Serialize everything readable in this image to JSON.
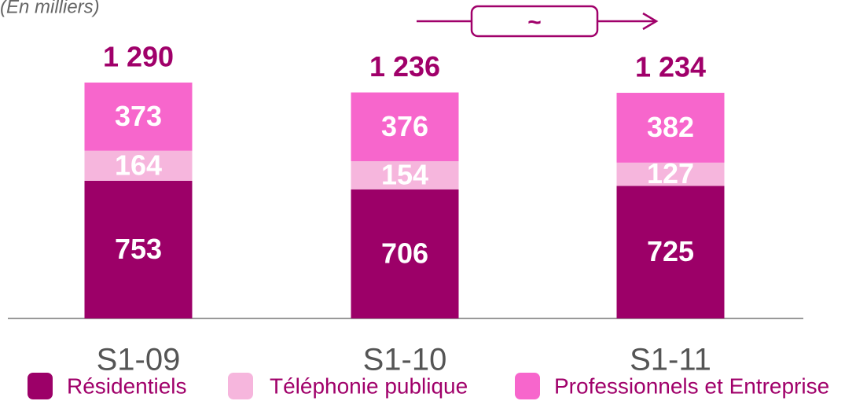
{
  "chart_data": {
    "type": "stacked_bar",
    "subtitle": "(En milliers)",
    "annotation": "~",
    "categories": [
      "S1-09",
      "S1-10",
      "S1-11"
    ],
    "series": [
      {
        "name": "Résidentiels",
        "color": "#9c0068",
        "values": [
          753,
          706,
          725
        ]
      },
      {
        "name": "Téléphonie publique",
        "color": "#f6b6dd",
        "values": [
          164,
          154,
          127
        ]
      },
      {
        "name": "Professionnels et Entreprise",
        "color": "#f766cc",
        "values": [
          373,
          376,
          382
        ]
      }
    ],
    "totals": {
      "values": [
        1290,
        1236,
        1234
      ],
      "value_labels": [
        "1 290",
        "1 236",
        "1 234"
      ],
      "color": "#a0006a"
    }
  }
}
